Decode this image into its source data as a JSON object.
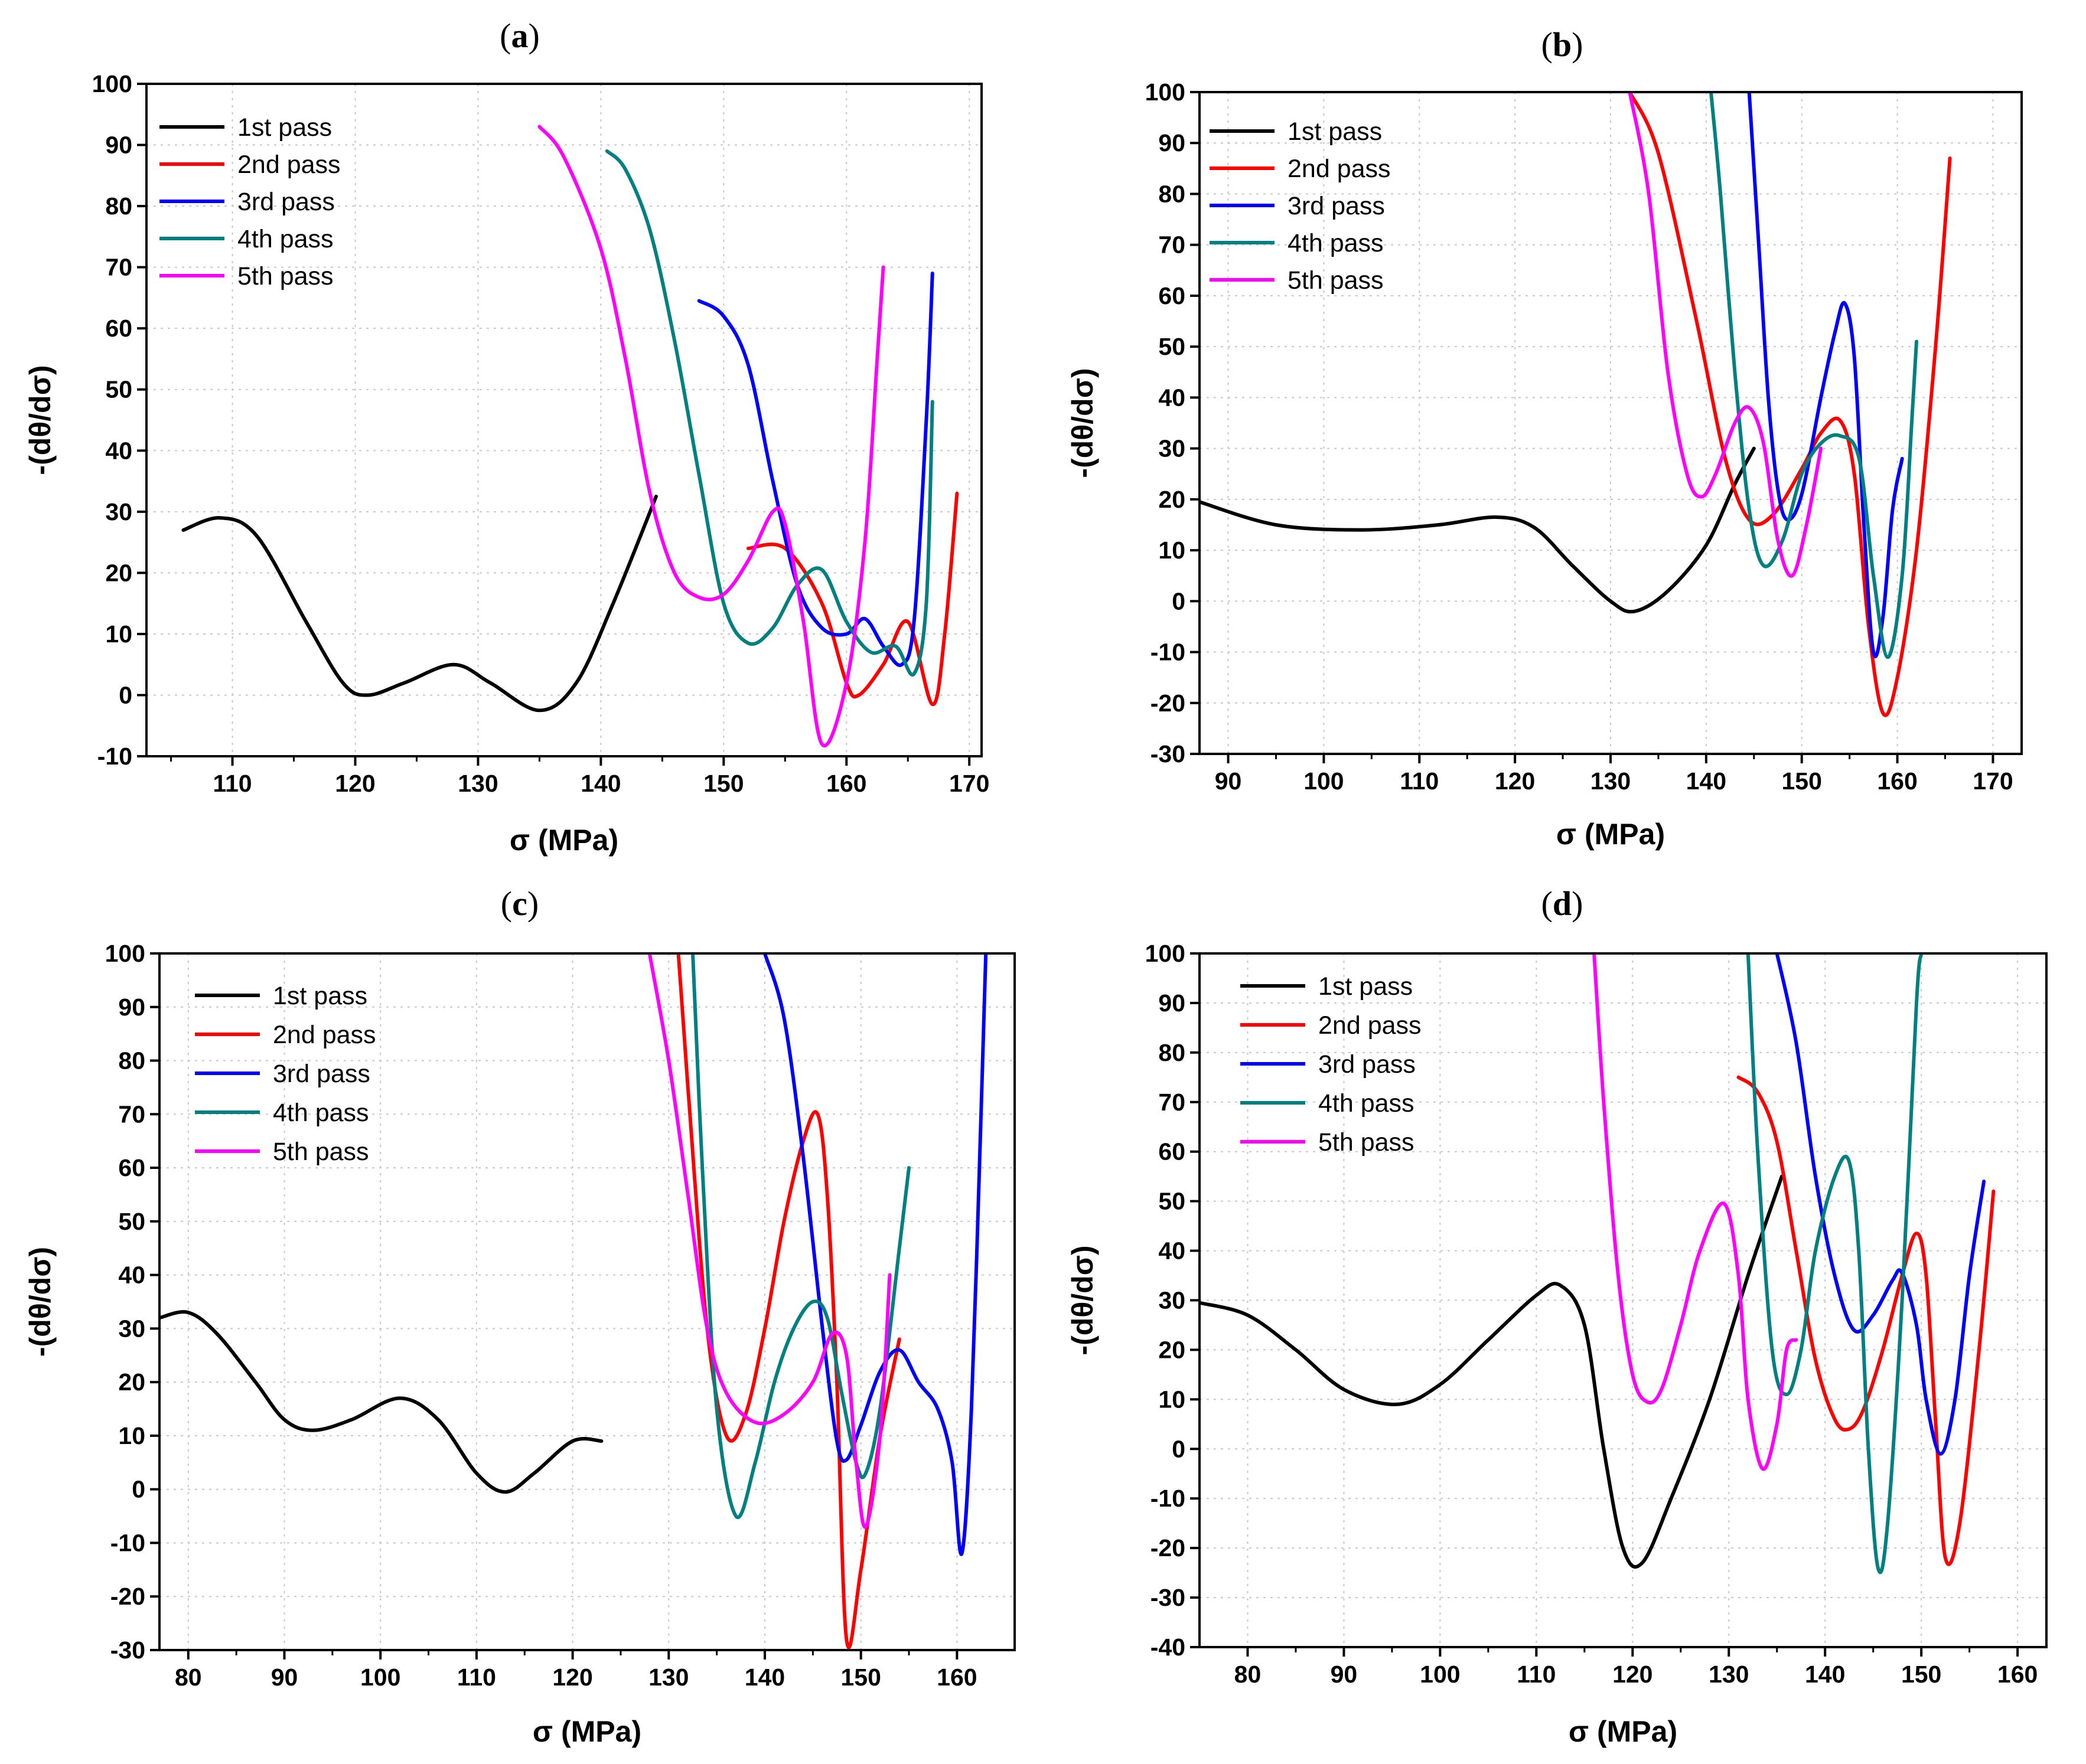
{
  "chart_data": [
    {
      "panel": "(a)",
      "type": "line",
      "xlabel": "σ (MPa)",
      "ylabel": "-(dθ/dσ)",
      "xlim": [
        103,
        171
      ],
      "ylim": [
        -10,
        100
      ],
      "xticks": [
        110,
        120,
        130,
        140,
        150,
        160,
        170
      ],
      "yticks": [
        -10,
        0,
        10,
        20,
        30,
        40,
        50,
        60,
        70,
        80,
        90,
        100
      ],
      "grid": true,
      "legend_position": "top-left",
      "series": [
        {
          "name": "1st pass",
          "color": "#000000",
          "x": [
            106,
            109,
            112,
            116,
            119,
            121,
            124,
            128,
            131,
            135,
            138,
            141,
            144.5
          ],
          "y": [
            27,
            29,
            26,
            12,
            2,
            0,
            2,
            5,
            2,
            -2.5,
            2,
            15,
            32.5
          ]
        },
        {
          "name": "2nd pass",
          "color": "#ff0000",
          "x": [
            152,
            155,
            158,
            160,
            161,
            163,
            165,
            167,
            168,
            169
          ],
          "y": [
            24,
            24,
            15,
            2,
            0,
            5,
            12,
            -1.5,
            10,
            33
          ]
        },
        {
          "name": "3rd pass",
          "color": "#0000ff",
          "x": [
            148,
            150,
            152,
            154,
            156,
            158,
            160,
            161.5,
            163,
            164.5,
            165.5,
            166.5,
            167
          ],
          "y": [
            64.5,
            62,
            54,
            35,
            18,
            11,
            10,
            12.5,
            8,
            5,
            12,
            45,
            69
          ]
        },
        {
          "name": "4th pass",
          "color": "#008080",
          "x": [
            140.5,
            142,
            144,
            146,
            148,
            150,
            152,
            154,
            156,
            158,
            160,
            162,
            164,
            165.5,
            166.5,
            167
          ],
          "y": [
            89,
            86,
            76,
            58,
            36,
            15,
            8.5,
            11,
            18,
            20.5,
            12,
            7,
            8,
            3.5,
            15,
            48
          ]
        },
        {
          "name": "5th pass",
          "color": "#ff00ff",
          "x": [
            135,
            137,
            140,
            142,
            144,
            146,
            148,
            150,
            152,
            154,
            155,
            156.5,
            158,
            160,
            161.5,
            162.5,
            163
          ],
          "y": [
            93,
            88,
            73,
            55,
            33,
            20,
            16,
            16.5,
            22,
            30,
            28,
            12,
            -8,
            2,
            25,
            55,
            70
          ]
        }
      ]
    },
    {
      "panel": "(b)",
      "type": "line",
      "xlabel": "σ (MPa)",
      "ylabel": "-(dθ/dσ)",
      "xlim": [
        87,
        173
      ],
      "ylim": [
        -30,
        100
      ],
      "xticks": [
        90,
        100,
        110,
        120,
        130,
        140,
        150,
        160,
        170
      ],
      "yticks": [
        -30,
        -20,
        -10,
        0,
        10,
        20,
        30,
        40,
        50,
        60,
        70,
        80,
        90,
        100
      ],
      "grid": true,
      "legend_position": "top-left",
      "series": [
        {
          "name": "1st pass",
          "color": "#000000",
          "x": [
            87,
            95,
            104,
            112,
            118,
            122,
            126,
            130,
            132.5,
            136,
            140,
            143,
            145
          ],
          "y": [
            19.5,
            15,
            14,
            15,
            16.5,
            14.5,
            7,
            0,
            -2,
            2,
            11,
            23,
            30
          ]
        },
        {
          "name": "2nd pass",
          "color": "#ff0000",
          "x": [
            132,
            135,
            139,
            142,
            144.5,
            147,
            150,
            152,
            154,
            155.5,
            157,
            158.5,
            160,
            162,
            164,
            165.5
          ],
          "y": [
            100,
            88,
            55,
            28,
            16,
            17,
            26,
            33,
            35.5,
            25,
            -5,
            -22,
            -15,
            10,
            50,
            87
          ]
        },
        {
          "name": "3rd pass",
          "color": "#0000ff",
          "x": [
            144.5,
            145.5,
            146.5,
            147.5,
            148.5,
            150,
            152,
            153.5,
            154.5,
            155.5,
            156.5,
            157.5,
            158.5,
            159.5,
            160.5
          ],
          "y": [
            100,
            70,
            40,
            22,
            16,
            21,
            40,
            53,
            58.5,
            48,
            15,
            -10,
            -3,
            18,
            28
          ]
        },
        {
          "name": "4th pass",
          "color": "#008080",
          "x": [
            140.5,
            141.5,
            143,
            144.5,
            146,
            148,
            150,
            152,
            154,
            156,
            157.5,
            159,
            160.5,
            161.5,
            162
          ],
          "y": [
            100,
            80,
            45,
            18,
            7,
            12,
            25,
            31,
            32.5,
            28,
            5,
            -11,
            5,
            35,
            51
          ]
        },
        {
          "name": "5th pass",
          "color": "#ff00ff",
          "x": [
            132,
            134,
            136,
            138,
            139.5,
            141,
            143,
            144.5,
            146,
            147.5,
            149,
            150.5,
            152
          ],
          "y": [
            100,
            80,
            45,
            25,
            20.5,
            25,
            35,
            38,
            31,
            12,
            5,
            15,
            30
          ]
        }
      ]
    },
    {
      "panel": "(c)",
      "type": "line",
      "xlabel": "σ (MPa)",
      "ylabel": "-(dθ/dσ)",
      "xlim": [
        77,
        166
      ],
      "ylim": [
        -30,
        100
      ],
      "xticks": [
        80,
        90,
        100,
        110,
        120,
        130,
        140,
        150,
        160
      ],
      "yticks": [
        -30,
        -20,
        -10,
        0,
        10,
        20,
        30,
        40,
        50,
        60,
        70,
        80,
        90,
        100
      ],
      "grid": true,
      "legend_position": "top-left",
      "series": [
        {
          "name": "1st pass",
          "color": "#000000",
          "x": [
            77,
            80,
            83,
            87,
            90,
            93,
            97,
            102,
            106,
            110,
            113,
            116,
            120,
            123
          ],
          "y": [
            32,
            33,
            29,
            20,
            13,
            11,
            13,
            17,
            13,
            3,
            -0.5,
            3,
            9,
            9
          ]
        },
        {
          "name": "2nd pass",
          "color": "#ff0000",
          "x": [
            131,
            132,
            134,
            136,
            138,
            140,
            142,
            144,
            145.5,
            146.5,
            147.5,
            148.5,
            150,
            152,
            154
          ],
          "y": [
            100,
            75,
            30,
            10,
            14,
            30,
            50,
            65,
            70,
            55,
            20,
            -28,
            -15,
            10,
            28
          ]
        },
        {
          "name": "3rd pass",
          "color": "#0000ff",
          "x": [
            140,
            142,
            144,
            146,
            147.5,
            148.5,
            150,
            152,
            154,
            156,
            158,
            159.5,
            160.5,
            161.5,
            162.5,
            163
          ],
          "y": [
            100,
            88,
            62,
            30,
            9,
            5.5,
            12,
            22,
            26,
            20,
            15,
            5,
            -12,
            15,
            70,
            100
          ]
        },
        {
          "name": "4th pass",
          "color": "#008080",
          "x": [
            132.5,
            133.5,
            135,
            137,
            139,
            141,
            143,
            145,
            146.5,
            148,
            149.5,
            150.5,
            152,
            154,
            155
          ],
          "y": [
            100,
            60,
            15,
            -5,
            5,
            20,
            30,
            35,
            32,
            18,
            5,
            3,
            15,
            45,
            60
          ]
        },
        {
          "name": "5th pass",
          "color": "#ff00ff",
          "x": [
            128,
            130,
            132,
            134,
            136,
            139,
            142,
            145,
            147,
            148.5,
            149.5,
            150.5,
            152,
            153
          ],
          "y": [
            100,
            80,
            55,
            30,
            18,
            12.5,
            14,
            20,
            29,
            25,
            5,
            -7,
            10,
            40
          ]
        }
      ]
    },
    {
      "panel": "(d)",
      "type": "line",
      "xlabel": "σ (MPa)",
      "ylabel": "-(dθ/dσ)",
      "xlim": [
        75,
        163
      ],
      "ylim": [
        -40,
        100
      ],
      "xticks": [
        80,
        90,
        100,
        110,
        120,
        130,
        140,
        150,
        160
      ],
      "yticks": [
        -40,
        -30,
        -20,
        -10,
        0,
        10,
        20,
        30,
        40,
        50,
        60,
        70,
        80,
        90,
        100
      ],
      "grid": true,
      "legend_position": "top-left",
      "series": [
        {
          "name": "1st pass",
          "color": "#000000",
          "x": [
            75,
            80,
            85,
            90,
            95.5,
            100,
            105,
            110,
            112.5,
            115,
            117,
            119,
            121,
            124,
            128,
            132,
            135.5
          ],
          "y": [
            29.5,
            27,
            20,
            12,
            9,
            13,
            22,
            31,
            33,
            25,
            0,
            -20,
            -23,
            -10,
            10,
            35,
            55
          ]
        },
        {
          "name": "2nd pass",
          "color": "#ff0000",
          "x": [
            131,
            133,
            135,
            137,
            139,
            141,
            142.5,
            144,
            146,
            148,
            149.5,
            150.5,
            151.5,
            152.5,
            154,
            156,
            157.5
          ],
          "y": [
            75,
            72,
            62,
            40,
            18,
            6,
            4,
            8,
            20,
            35,
            43.5,
            35,
            5,
            -22,
            -15,
            20,
            52
          ]
        },
        {
          "name": "3rd pass",
          "color": "#0000ff",
          "x": [
            135,
            137,
            139,
            141,
            143,
            145,
            147,
            148,
            149.5,
            150.5,
            152,
            153.5,
            155,
            156.5
          ],
          "y": [
            100,
            82,
            55,
            35,
            24,
            27,
            34,
            35.5,
            25,
            10,
            -1,
            10,
            35,
            54
          ]
        },
        {
          "name": "4th pass",
          "color": "#008080",
          "x": [
            132,
            133,
            134.5,
            136,
            137.5,
            139,
            141,
            142.5,
            143.5,
            144.5,
            145.5,
            146.5,
            148,
            149.5,
            150
          ],
          "y": [
            100,
            60,
            20,
            11,
            20,
            40,
            55,
            58,
            40,
            0,
            -24,
            -15,
            30,
            90,
            100
          ]
        },
        {
          "name": "5th pass",
          "color": "#ff00ff",
          "x": [
            116,
            117,
            118.5,
            120,
            121.5,
            123,
            125,
            127,
            129.5,
            131,
            132,
            133.5,
            135,
            136,
            137
          ],
          "y": [
            100,
            70,
            35,
            15,
            9.5,
            12,
            25,
            40,
            49.5,
            35,
            10,
            -4,
            5,
            20,
            22
          ]
        }
      ]
    }
  ],
  "panels": [
    {
      "label_open": "(",
      "label_letter": "a",
      "label_close": ")"
    },
    {
      "label_open": "(",
      "label_letter": "b",
      "label_close": ")"
    },
    {
      "label_open": "(",
      "label_letter": "c",
      "label_close": ")"
    },
    {
      "label_open": "(",
      "label_letter": "d",
      "label_close": ")"
    }
  ]
}
